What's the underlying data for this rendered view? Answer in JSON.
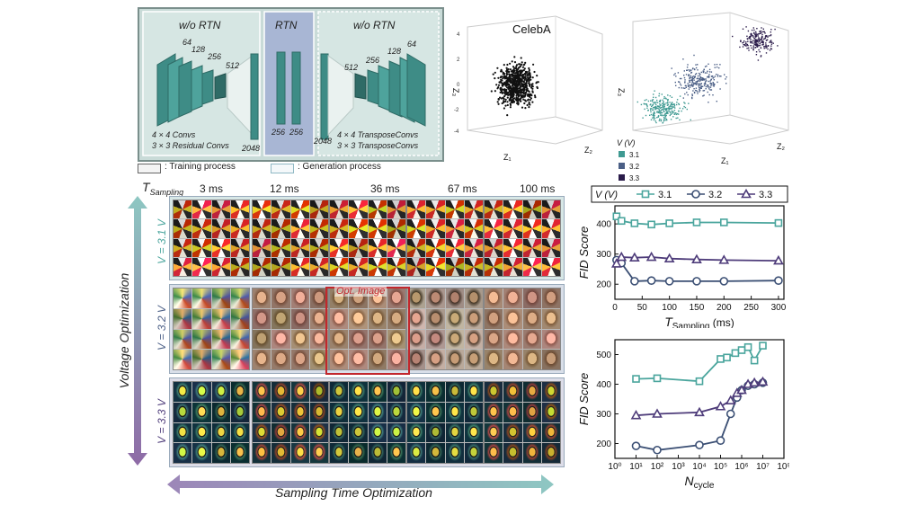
{
  "network": {
    "left_title": "w/o RTN",
    "center_title": "RTN",
    "right_title": "w/o RTN",
    "enc_channels": [
      "64",
      "128",
      "256",
      "512"
    ],
    "enc_bottleneck": "2048",
    "rtn_dims": [
      "256",
      "256"
    ],
    "dec_bottleneck": "2048",
    "dec_channels": [
      "512",
      "256",
      "128",
      "64"
    ],
    "enc_desc_1": "4 × 4 Convs",
    "enc_desc_2": "3 × 3 Residual Convs",
    "dec_desc_1": "4 × 4 TransposeConvs",
    "dec_desc_2": "3 × 3 TransposeConvs"
  },
  "legend": {
    "training": ": Training process",
    "generation": ": Generation process"
  },
  "scatter_left": {
    "title": "CelebA",
    "axis_z": "Z₃",
    "axis_x": "Z₁",
    "axis_y": "Z₂",
    "ticks": [
      "4",
      "2",
      "0",
      "-2",
      "-4"
    ]
  },
  "scatter_right": {
    "axis_z": "Z₃",
    "axis_x": "Z₁",
    "axis_y": "Z₂",
    "legend_title": "V (V)",
    "legend_items": [
      "3.1",
      "3.2",
      "3.3"
    ],
    "colors": [
      "#3f9a92",
      "#4b5f86",
      "#2a1b4a"
    ]
  },
  "image_grid": {
    "time_header": "T",
    "time_sub": "Sampling",
    "times": [
      "3 ms",
      "12 ms",
      "36 ms",
      "67 ms",
      "100 ms"
    ],
    "row_labels": [
      "V = 3.1 V",
      "V = 3.2 V",
      "V = 3.3 V"
    ],
    "opt_label": "Opt. Image",
    "voltage_axis": "Voltage Optimization",
    "time_axis": "Sampling Time Optimization"
  },
  "chart_data": [
    {
      "type": "line",
      "legend_title": "V (V)",
      "legend_loc": "top",
      "xlabel": "T",
      "xlabel_sub": "Sampling",
      "xlabel_unit": "(ms)",
      "ylabel": "FID Score",
      "xlim": [
        0,
        310
      ],
      "ylim": [
        150,
        460
      ],
      "xticks": [
        0,
        50,
        100,
        150,
        200,
        250,
        300
      ],
      "yticks": [
        200,
        300,
        400
      ],
      "series": [
        {
          "name": "3.1",
          "color": "#4aa59d",
          "marker": "square",
          "x": [
            3,
            12,
            36,
            67,
            100,
            150,
            200,
            300
          ],
          "y": [
            425,
            410,
            402,
            398,
            402,
            405,
            405,
            403
          ]
        },
        {
          "name": "3.2",
          "color": "#3b4f74",
          "marker": "circle",
          "x": [
            3,
            12,
            36,
            67,
            100,
            150,
            200,
            300
          ],
          "y": [
            280,
            270,
            210,
            212,
            210,
            210,
            210,
            212
          ]
        },
        {
          "name": "3.3",
          "color": "#4e3c7a",
          "marker": "triangle",
          "x": [
            3,
            12,
            36,
            67,
            100,
            150,
            200,
            300
          ],
          "y": [
            268,
            290,
            288,
            290,
            285,
            282,
            280,
            278
          ]
        }
      ]
    },
    {
      "type": "line",
      "xscale": "log",
      "xlabel": "N",
      "xlabel_sub": "cycle",
      "ylabel": "FID Score",
      "xlim": [
        1,
        100000000
      ],
      "ylim": [
        150,
        550
      ],
      "xticks": [
        1,
        10,
        100,
        1000,
        10000,
        100000,
        1000000,
        10000000,
        100000000
      ],
      "xtick_labels": [
        "10⁰",
        "10¹",
        "10²",
        "10³",
        "10⁴",
        "10⁵",
        "10⁶",
        "10⁷",
        "10⁸"
      ],
      "yticks": [
        200,
        300,
        400,
        500
      ],
      "series": [
        {
          "name": "3.1",
          "color": "#4aa59d",
          "marker": "square",
          "x": [
            10,
            100,
            10000,
            100000,
            200000,
            500000,
            1000000,
            2000000,
            4000000,
            10000000
          ],
          "y": [
            418,
            420,
            410,
            485,
            490,
            505,
            515,
            525,
            480,
            530
          ]
        },
        {
          "name": "3.2",
          "color": "#3b4f74",
          "marker": "circle",
          "x": [
            10,
            100,
            10000,
            100000,
            300000,
            600000,
            1000000,
            2000000,
            4000000,
            10000000
          ],
          "y": [
            192,
            178,
            195,
            210,
            300,
            355,
            380,
            395,
            400,
            405
          ]
        },
        {
          "name": "3.3",
          "color": "#4e3c7a",
          "marker": "triangle",
          "x": [
            10,
            100,
            10000,
            100000,
            300000,
            600000,
            1000000,
            2000000,
            4000000,
            10000000
          ],
          "y": [
            295,
            300,
            305,
            325,
            345,
            370,
            380,
            400,
            405,
            408
          ]
        }
      ]
    }
  ]
}
